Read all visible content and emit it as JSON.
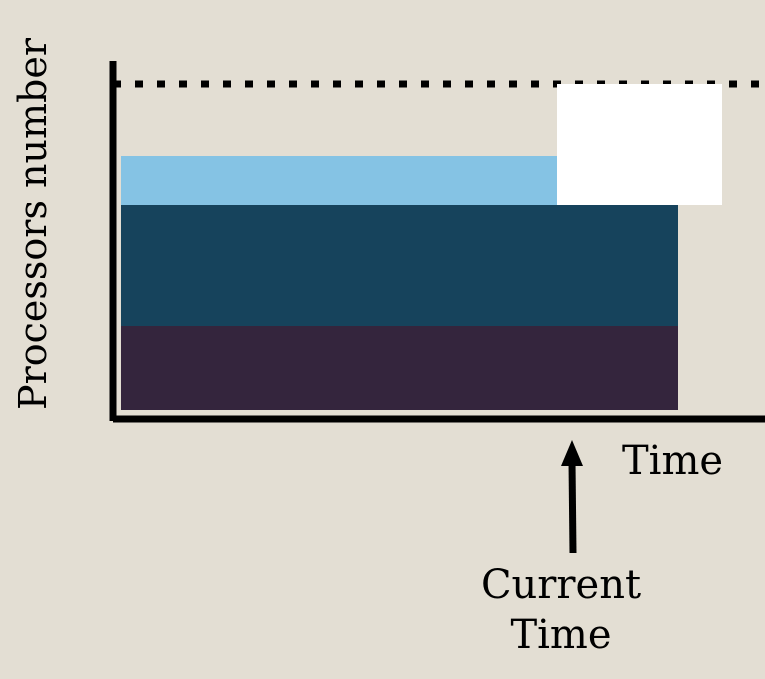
{
  "labels": {
    "y_axis": "Processors number",
    "x_axis": "Time",
    "current_time_line1": "Current",
    "current_time_line2": "Time"
  },
  "colors": {
    "background": "#e3ded3",
    "job_light_blue": "#85c3e4",
    "job_dark_teal": "#16435c",
    "job_dark_purple": "#34253d",
    "pending_job": "#ffffff",
    "axes": "#000000"
  },
  "blocks": [
    {
      "name": "job-bottom",
      "color_key": "job_dark_purple"
    },
    {
      "name": "job-middle",
      "color_key": "job_dark_teal"
    },
    {
      "name": "job-top",
      "color_key": "job_light_blue"
    },
    {
      "name": "job-pending",
      "color_key": "pending_job"
    }
  ]
}
